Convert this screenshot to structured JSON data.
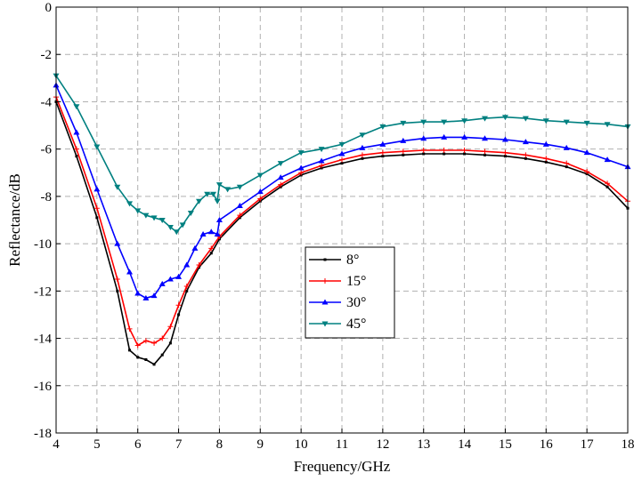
{
  "chart_data": {
    "type": "line",
    "title": "",
    "xlabel": "Frequency/GHz",
    "ylabel": "Reflectance/dB",
    "xlim": [
      4,
      18
    ],
    "ylim": [
      -18,
      0
    ],
    "xticks": [
      4,
      5,
      6,
      7,
      8,
      9,
      10,
      11,
      12,
      13,
      14,
      15,
      16,
      17,
      18
    ],
    "yticks": [
      0,
      -2,
      -4,
      -6,
      -8,
      -10,
      -12,
      -14,
      -16,
      -18
    ],
    "grid": true,
    "legend_position": "center",
    "series": [
      {
        "name": "8°",
        "color": "#000000",
        "marker": "square",
        "x": [
          4,
          4.5,
          5,
          5.5,
          5.8,
          6.0,
          6.2,
          6.4,
          6.6,
          6.8,
          7.0,
          7.2,
          7.5,
          7.8,
          8.0,
          8.5,
          9,
          9.5,
          10,
          10.5,
          11,
          11.5,
          12,
          12.5,
          13,
          13.5,
          14,
          14.5,
          15,
          15.5,
          16,
          16.5,
          17,
          17.5,
          18
        ],
        "y": [
          -4.0,
          -6.3,
          -8.9,
          -12.0,
          -14.5,
          -14.8,
          -14.9,
          -15.1,
          -14.7,
          -14.2,
          -13.0,
          -12.0,
          -11.0,
          -10.4,
          -9.8,
          -8.9,
          -8.2,
          -7.6,
          -7.1,
          -6.8,
          -6.6,
          -6.4,
          -6.3,
          -6.25,
          -6.2,
          -6.2,
          -6.2,
          -6.25,
          -6.3,
          -6.4,
          -6.55,
          -6.75,
          -7.05,
          -7.6,
          -8.5
        ]
      },
      {
        "name": "15°",
        "color": "#ff0000",
        "marker": "plus",
        "x": [
          4,
          4.5,
          5,
          5.5,
          5.8,
          6.0,
          6.2,
          6.4,
          6.6,
          6.8,
          7.0,
          7.2,
          7.5,
          7.8,
          8.0,
          8.5,
          9,
          9.5,
          10,
          10.5,
          11,
          11.5,
          12,
          12.5,
          13,
          13.5,
          14,
          14.5,
          15,
          15.5,
          16,
          16.5,
          17,
          17.5,
          18
        ],
        "y": [
          -3.8,
          -6.0,
          -8.5,
          -11.5,
          -13.6,
          -14.3,
          -14.1,
          -14.2,
          -14.0,
          -13.5,
          -12.6,
          -11.8,
          -10.9,
          -10.2,
          -9.7,
          -8.8,
          -8.1,
          -7.5,
          -7.0,
          -6.7,
          -6.45,
          -6.25,
          -6.15,
          -6.1,
          -6.05,
          -6.05,
          -6.05,
          -6.1,
          -6.15,
          -6.25,
          -6.4,
          -6.6,
          -6.95,
          -7.45,
          -8.2
        ]
      },
      {
        "name": "30°",
        "color": "#0000ff",
        "marker": "triangle",
        "x": [
          4,
          4.5,
          5,
          5.5,
          5.8,
          6.0,
          6.2,
          6.4,
          6.6,
          6.8,
          7.0,
          7.2,
          7.4,
          7.6,
          7.8,
          7.95,
          8.0,
          8.5,
          9,
          9.5,
          10,
          10.5,
          11,
          11.5,
          12,
          12.5,
          13,
          13.5,
          14,
          14.5,
          15,
          15.5,
          16,
          16.5,
          17,
          17.5,
          18
        ],
        "y": [
          -3.3,
          -5.3,
          -7.7,
          -10.0,
          -11.2,
          -12.1,
          -12.3,
          -12.2,
          -11.7,
          -11.5,
          -11.4,
          -10.9,
          -10.2,
          -9.6,
          -9.5,
          -9.6,
          -9.0,
          -8.4,
          -7.8,
          -7.2,
          -6.8,
          -6.5,
          -6.2,
          -5.95,
          -5.8,
          -5.65,
          -5.55,
          -5.5,
          -5.5,
          -5.55,
          -5.6,
          -5.7,
          -5.8,
          -5.95,
          -6.15,
          -6.45,
          -6.75
        ]
      },
      {
        "name": "45°",
        "color": "#008080",
        "marker": "triangle-down",
        "x": [
          4,
          4.5,
          5,
          5.5,
          5.8,
          6.0,
          6.2,
          6.4,
          6.6,
          6.8,
          6.95,
          7.1,
          7.3,
          7.5,
          7.7,
          7.85,
          7.95,
          8.0,
          8.2,
          8.5,
          9,
          9.5,
          10,
          10.5,
          11,
          11.5,
          12,
          12.5,
          13,
          13.5,
          14,
          14.5,
          15,
          15.5,
          16,
          16.5,
          17,
          17.5,
          18
        ],
        "y": [
          -2.9,
          -4.2,
          -5.9,
          -7.6,
          -8.3,
          -8.6,
          -8.8,
          -8.9,
          -9.0,
          -9.3,
          -9.5,
          -9.2,
          -8.7,
          -8.2,
          -7.9,
          -7.9,
          -8.2,
          -7.5,
          -7.7,
          -7.6,
          -7.1,
          -6.6,
          -6.15,
          -6.0,
          -5.8,
          -5.4,
          -5.05,
          -4.9,
          -4.85,
          -4.85,
          -4.8,
          -4.7,
          -4.65,
          -4.7,
          -4.8,
          -4.85,
          -4.9,
          -4.95,
          -5.05
        ]
      }
    ]
  },
  "chart_meta": {
    "tick_format": "integer"
  }
}
